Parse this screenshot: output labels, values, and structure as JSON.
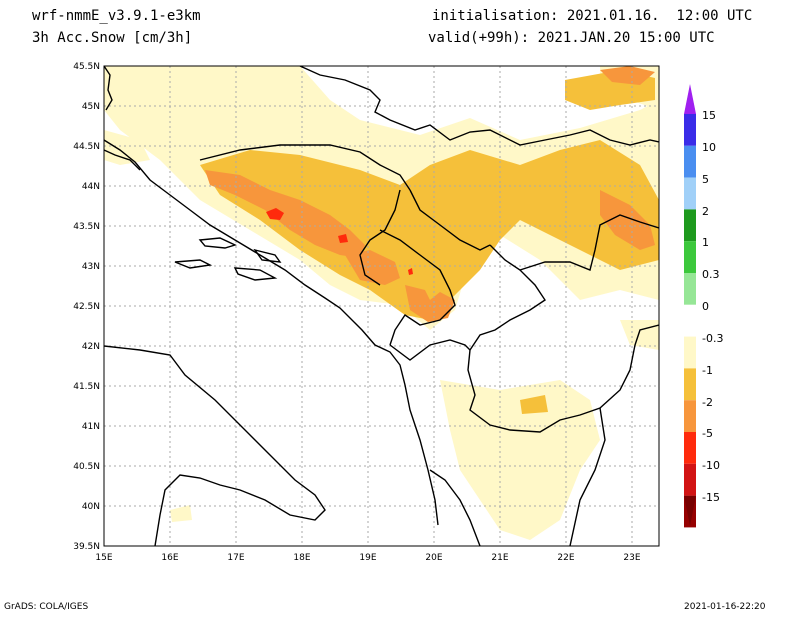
{
  "header": {
    "model": "wrf-nmmE_v3.9.1-e3km",
    "field": "3h Acc.Snow [cm/3h]",
    "init": "initialisation: 2021.01.16.  12:00 UTC",
    "valid": "valid(+99h): 2021.JAN.20 15:00 UTC"
  },
  "footer": {
    "left": "GrADS: COLA/IGES",
    "right": "2021-01-16-22:20"
  },
  "map": {
    "lat_labels": [
      "45.5N",
      "45N",
      "44.5N",
      "44N",
      "43.5N",
      "43N",
      "42.5N",
      "42N",
      "41.5N",
      "41N",
      "40.5N",
      "40N",
      "39.5N"
    ],
    "lon_labels": [
      "15E",
      "16E",
      "17E",
      "18E",
      "19E",
      "20E",
      "21E",
      "22E",
      "23E"
    ],
    "lat_range": [
      39.5,
      45.5
    ],
    "lon_range": [
      15,
      23.3
    ],
    "grid": true
  },
  "colorbar": {
    "labels": [
      "15",
      "10",
      "5",
      "2",
      "1",
      "0.3",
      "0",
      "-0.3",
      "-1",
      "-2",
      "-5",
      "-10",
      "-15"
    ],
    "colors": [
      "#3a2ce8",
      "#4a8ef0",
      "#a0d0f8",
      "#1e9a1e",
      "#3cc83c",
      "#96e696",
      "#ffffff",
      "#fff8c8",
      "#f5c03a",
      "#f7963c",
      "#ff2a0c",
      "#d21414",
      "#960000"
    ],
    "top_tip_color": "#a020f0",
    "bottom_tip_color": "#780000"
  },
  "colors": {
    "light": "#fff8c8",
    "medium": "#f5c03a",
    "orange": "#f7963c",
    "red": "#ff2a0c"
  }
}
